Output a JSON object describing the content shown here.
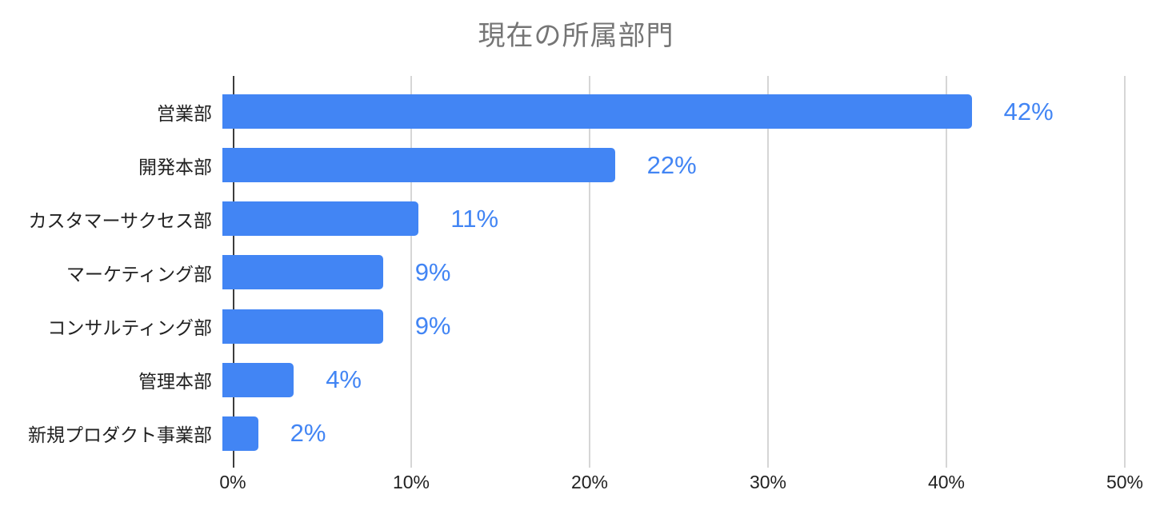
{
  "chart_title": "現在の所属部門",
  "chart_data": {
    "type": "bar",
    "orientation": "horizontal",
    "title": "現在の所属部門",
    "categories": [
      "営業部",
      "開発本部",
      "カスタマーサクセス部",
      "マーケティング部",
      "コンサルティング部",
      "管理本部",
      "新規プロダクト事業部"
    ],
    "values": [
      42,
      22,
      11,
      9,
      9,
      4,
      2
    ],
    "data_labels": [
      "42%",
      "22%",
      "11%",
      "9%",
      "9%",
      "4%",
      "2%"
    ],
    "xlabel": "",
    "ylabel": "",
    "xlim": [
      0,
      50
    ],
    "x_ticks": [
      "0%",
      "10%",
      "20%",
      "30%",
      "40%",
      "50%"
    ],
    "grid": true,
    "legend": "none",
    "colors": {
      "background": "#ffffff",
      "bar": "#4285f4",
      "data_label": "#4285f4",
      "title": "#757575",
      "axis_text": "#212121",
      "gridline": "#d6d6d6",
      "axis_line": "#3c3c3c"
    }
  }
}
